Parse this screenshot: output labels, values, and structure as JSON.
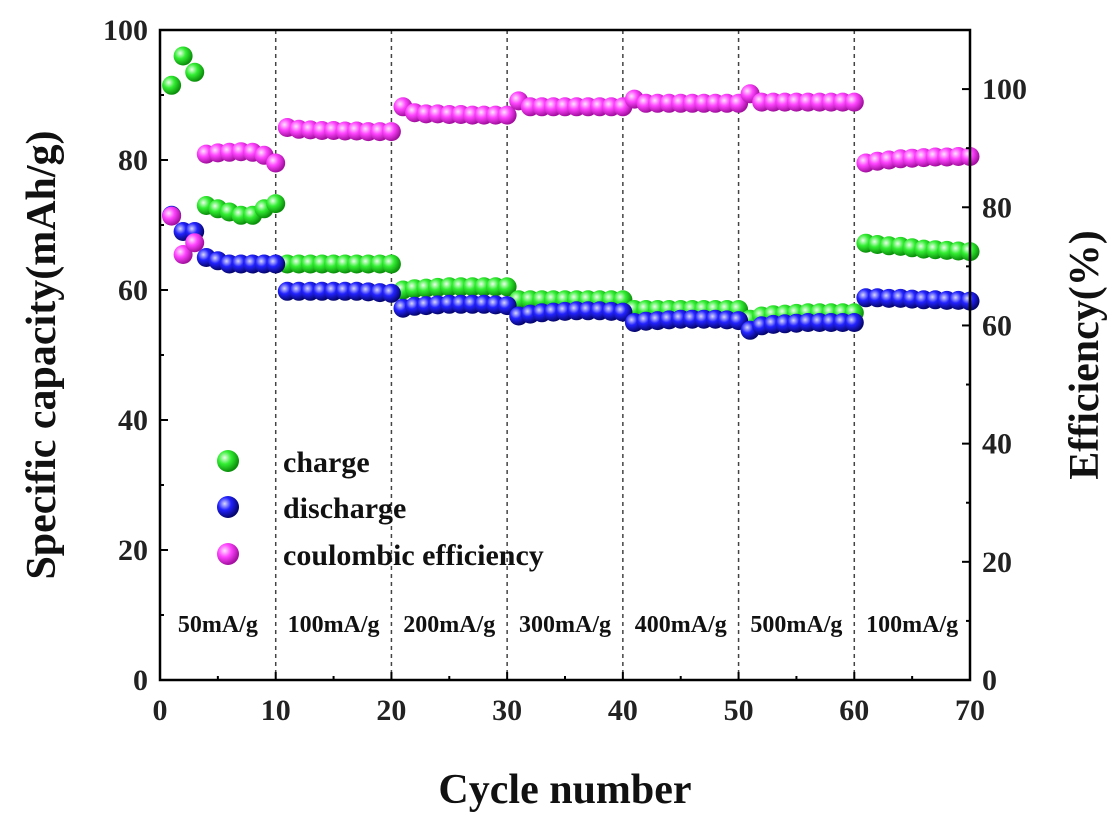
{
  "chart_data": {
    "type": "scatter",
    "xlabel": "Cycle number",
    "ylabel_left": "Specific capacity(mAh/g)",
    "ylabel_right": "Efficiency(%)",
    "xlim": [
      0,
      70
    ],
    "ylim_left": [
      0,
      100
    ],
    "ylim_right": [
      0,
      110
    ],
    "x_ticks": [
      "0",
      "10",
      "20",
      "30",
      "40",
      "50",
      "60",
      "70"
    ],
    "y_left_ticks": [
      "0",
      "20",
      "40",
      "60",
      "80",
      "100"
    ],
    "y_right_ticks": [
      "0",
      "20",
      "40",
      "60",
      "80",
      "100"
    ],
    "y_left_tick_values": [
      0,
      20,
      40,
      60,
      80,
      100
    ],
    "y_right_tick_values": [
      0,
      20,
      40,
      60,
      80,
      100
    ],
    "dividers": [
      10,
      20,
      30,
      40,
      50,
      60
    ],
    "rate_labels": [
      "50mA/g",
      "100mA/g",
      "200mA/g",
      "300mA/g",
      "400mA/g",
      "500mA/g",
      "100mA/g"
    ],
    "legend": [
      "charge",
      "discharge",
      "coulombic efficiency"
    ],
    "legend_position": "center-left",
    "grid": false,
    "colors": {
      "charge": "#22dd22",
      "discharge": "#1a1aee",
      "efficiency": "#ee33ee"
    },
    "series": [
      {
        "name": "charge",
        "axis": "left",
        "x": [
          1,
          2,
          3,
          4,
          5,
          6,
          7,
          8,
          9,
          10,
          11,
          12,
          13,
          14,
          15,
          16,
          17,
          18,
          19,
          20,
          21,
          22,
          23,
          24,
          25,
          26,
          27,
          28,
          29,
          30,
          31,
          32,
          33,
          34,
          35,
          36,
          37,
          38,
          39,
          40,
          41,
          42,
          43,
          44,
          45,
          46,
          47,
          48,
          49,
          50,
          51,
          52,
          53,
          54,
          55,
          56,
          57,
          58,
          59,
          60,
          61,
          62,
          63,
          64,
          65,
          66,
          67,
          68,
          69,
          70
        ],
        "y": [
          91.5,
          96,
          93.5,
          73,
          72.5,
          72,
          71.5,
          71.5,
          72.5,
          73.3,
          64,
          64,
          64,
          64,
          64,
          64,
          64,
          64,
          64,
          64,
          60,
          60.2,
          60.3,
          60.4,
          60.5,
          60.5,
          60.5,
          60.5,
          60.5,
          60.5,
          58.5,
          58.5,
          58.5,
          58.5,
          58.5,
          58.5,
          58.5,
          58.5,
          58.5,
          58.5,
          57,
          57,
          57,
          57,
          57,
          57,
          57,
          57,
          57,
          57,
          55.5,
          56,
          56.2,
          56.3,
          56.4,
          56.5,
          56.5,
          56.5,
          56.5,
          56.5,
          67.2,
          67,
          66.8,
          66.7,
          66.5,
          66.3,
          66.2,
          66.1,
          66,
          65.9
        ]
      },
      {
        "name": "discharge",
        "axis": "left",
        "x": [
          1,
          2,
          3,
          4,
          5,
          6,
          7,
          8,
          9,
          10,
          11,
          12,
          13,
          14,
          15,
          16,
          17,
          18,
          19,
          20,
          21,
          22,
          23,
          24,
          25,
          26,
          27,
          28,
          29,
          30,
          31,
          32,
          33,
          34,
          35,
          36,
          37,
          38,
          39,
          40,
          41,
          42,
          43,
          44,
          45,
          46,
          47,
          48,
          49,
          50,
          51,
          52,
          53,
          54,
          55,
          56,
          57,
          58,
          59,
          60,
          61,
          62,
          63,
          64,
          65,
          66,
          67,
          68,
          69,
          70
        ],
        "y": [
          71.5,
          69,
          69,
          65,
          64.5,
          64,
          64,
          64,
          64,
          64,
          59.8,
          59.8,
          59.8,
          59.8,
          59.8,
          59.8,
          59.8,
          59.7,
          59.6,
          59.5,
          57.2,
          57.5,
          57.6,
          57.7,
          57.8,
          57.8,
          57.8,
          57.8,
          57.7,
          57.6,
          56,
          56.3,
          56.5,
          56.6,
          56.7,
          56.8,
          56.8,
          56.8,
          56.7,
          56.6,
          55,
          55.2,
          55.3,
          55.4,
          55.5,
          55.5,
          55.5,
          55.5,
          55.4,
          55.3,
          53.8,
          54.5,
          54.7,
          54.8,
          54.9,
          55,
          55,
          55,
          55,
          55,
          58.8,
          58.8,
          58.7,
          58.7,
          58.6,
          58.5,
          58.5,
          58.4,
          58.4,
          58.3
        ]
      },
      {
        "name": "coulombic efficiency",
        "axis": "right",
        "x": [
          1,
          2,
          3,
          4,
          5,
          6,
          7,
          8,
          9,
          10,
          11,
          12,
          13,
          14,
          15,
          16,
          17,
          18,
          19,
          20,
          21,
          22,
          23,
          24,
          25,
          26,
          27,
          28,
          29,
          30,
          31,
          32,
          33,
          34,
          35,
          36,
          37,
          38,
          39,
          40,
          41,
          42,
          43,
          44,
          45,
          46,
          47,
          48,
          49,
          50,
          51,
          52,
          53,
          54,
          55,
          56,
          57,
          58,
          59,
          60,
          61,
          62,
          63,
          64,
          65,
          66,
          67,
          68,
          69,
          70
        ],
        "y": [
          78.5,
          72,
          74,
          89,
          89.2,
          89.3,
          89.4,
          89.3,
          88.8,
          87.5,
          93.5,
          93.2,
          93.1,
          93,
          93,
          92.9,
          92.9,
          92.8,
          92.8,
          92.8,
          97,
          96,
          95.8,
          95.8,
          95.7,
          95.7,
          95.6,
          95.6,
          95.6,
          95.6,
          98,
          97,
          97,
          97,
          97,
          97,
          97,
          97,
          97,
          97,
          98.3,
          97.6,
          97.6,
          97.6,
          97.6,
          97.6,
          97.6,
          97.6,
          97.6,
          97.6,
          99.2,
          97.8,
          97.8,
          97.8,
          97.8,
          97.8,
          97.8,
          97.8,
          97.8,
          97.8,
          87.5,
          87.8,
          88,
          88.2,
          88.3,
          88.4,
          88.5,
          88.5,
          88.6,
          88.6
        ]
      }
    ]
  }
}
